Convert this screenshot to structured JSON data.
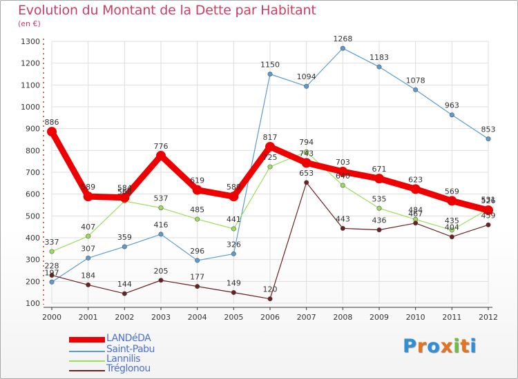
{
  "header": {
    "title": "Evolution du Montant de la Dette par Habitant",
    "subtitle": "(en €)"
  },
  "logo": {
    "text": "Proxiti",
    "letters": [
      "P",
      "r",
      "o",
      "x",
      "i",
      "t",
      "i"
    ],
    "colors": [
      "#2e8fd8",
      "#e8731a",
      "#2e8fd8",
      "#e8731a",
      "#6fbf3a",
      "#e8731a",
      "#2e8fd8"
    ]
  },
  "colors": {
    "title": "#cc3d66",
    "axis_text": "#333333",
    "grid": "#dddddd",
    "legend_text": "#4a6fd8"
  },
  "chart_data": {
    "type": "line",
    "x": [
      "2000",
      "2001",
      "2002",
      "2003",
      "2004",
      "2005",
      "2006",
      "2007",
      "2008",
      "2009",
      "2010",
      "2011",
      "2012"
    ],
    "ylim": [
      100,
      1300
    ],
    "yticks": [
      100,
      200,
      300,
      400,
      500,
      600,
      700,
      800,
      900,
      1000,
      1100,
      1200,
      1300
    ],
    "grid": true,
    "legend_position": "bottom-left",
    "series": [
      {
        "name": "LANDéDA",
        "color": "#ee0000",
        "width": 9,
        "marker": 7,
        "values": [
          886,
          589,
          584,
          776,
          619,
          589,
          817,
          743,
          703,
          671,
          623,
          569,
          526
        ]
      },
      {
        "name": "Saint-Pabu",
        "color": "#5b9bd0",
        "width": 1.2,
        "marker": 3.2,
        "values": [
          197,
          307,
          359,
          416,
          296,
          326,
          1150,
          1094,
          1268,
          1183,
          1078,
          963,
          853
        ]
      },
      {
        "name": "Lannilis",
        "color": "#9adf5c",
        "width": 1.2,
        "marker": 3.2,
        "values": [
          337,
          407,
          568,
          537,
          485,
          441,
          725,
          794,
          640,
          535,
          484,
          435,
          531
        ]
      },
      {
        "name": "Tréglonou",
        "color": "#6b1f1f",
        "width": 1.2,
        "marker": 3.2,
        "values": [
          228,
          184,
          144,
          205,
          177,
          149,
          120,
          653,
          443,
          436,
          467,
          404,
          459
        ]
      }
    ]
  }
}
